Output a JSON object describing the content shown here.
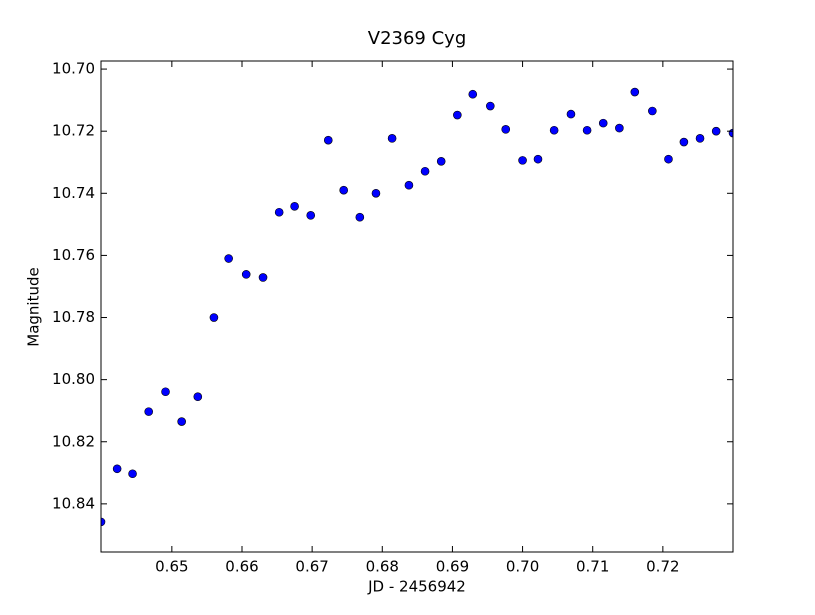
{
  "chart_data": {
    "type": "scatter",
    "title": "V2369 Cyg",
    "x_label": "JD - 2456942",
    "y_label": "Magnitude",
    "series": [
      {
        "color": "#0000ff",
        "x": [
          0.6399,
          0.6422,
          0.6444,
          0.6467,
          0.6491,
          0.6514,
          0.6537,
          0.656,
          0.6581,
          0.6606,
          0.663,
          0.6653,
          0.6675,
          0.6698,
          0.6723,
          0.6745,
          0.6768,
          0.6791,
          0.6814,
          0.6838,
          0.6861,
          0.6884,
          0.6907,
          0.6929,
          0.6954,
          0.6976,
          0.7,
          0.7022,
          0.7045,
          0.7069,
          0.7092,
          0.7115,
          0.7138,
          0.716,
          0.7185,
          0.7208,
          0.723,
          0.7253,
          0.7276,
          0.73
        ],
        "values": [
          10.8458,
          10.8287,
          10.8303,
          10.8103,
          10.8039,
          10.8135,
          10.8055,
          10.78,
          10.761,
          10.7661,
          10.7671,
          10.7461,
          10.7442,
          10.7471,
          10.7229,
          10.739,
          10.7477,
          10.74,
          10.7223,
          10.7374,
          10.7329,
          10.7297,
          10.7148,
          10.7081,
          10.7119,
          10.7194,
          10.7294,
          10.729,
          10.7197,
          10.7145,
          10.7197,
          10.7174,
          10.719,
          10.7074,
          10.7135,
          10.729,
          10.7235,
          10.7223,
          10.72,
          10.7206
        ]
      }
    ],
    "xlim": [
      0.6399,
      0.73
    ],
    "xticks": [
      0.65,
      0.66,
      0.67,
      0.68,
      0.69,
      {
        "value": 0.7,
        "label": "0.70"
      },
      0.71,
      0.72
    ],
    "ylim": [
      10.8555,
      10.6974
    ],
    "yticks": [
      {
        "value": 10.7,
        "label": "10.70"
      },
      10.72,
      10.74,
      10.76,
      10.78,
      {
        "value": 10.8,
        "label": "10.80"
      },
      10.82,
      10.84
    ],
    "grid": false
  }
}
